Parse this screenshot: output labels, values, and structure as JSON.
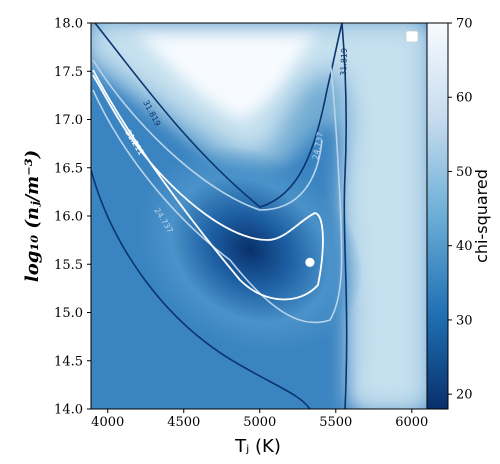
{
  "chart_data": {
    "type": "heatmap",
    "title": "",
    "xlabel": "Tⱼ (K)",
    "ylabel": "log₁₀ (nⱼ/m⁻³)",
    "xlim": [
      3890,
      6100
    ],
    "ylim": [
      14.0,
      18.0
    ],
    "x_ticks": [
      4000,
      4500,
      5000,
      5500,
      6000
    ],
    "x_tick_labels": [
      "4000",
      "4500",
      "5000",
      "5500",
      "6000"
    ],
    "y_ticks": [
      14.0,
      14.5,
      15.0,
      15.5,
      16.0,
      16.5,
      17.0,
      17.5,
      18.0
    ],
    "y_tick_labels": [
      "14.0",
      "14.5",
      "15.0",
      "15.5",
      "16.0",
      "16.5",
      "17.0",
      "17.5",
      "18.0"
    ],
    "colorbar": {
      "label": "chi-squared",
      "range": [
        18,
        70
      ],
      "ticks": [
        20,
        30,
        40,
        50,
        60,
        70
      ],
      "tick_labels": [
        "20",
        "30",
        "40",
        "50",
        "60",
        "70"
      ],
      "colormap": "Blues_r"
    },
    "contour_levels": [
      {
        "value": "21.211",
        "color": "#ffffff"
      },
      {
        "value": "24.737",
        "color": "#b8d3ea"
      },
      {
        "value": "31.819",
        "color": "#0b356e"
      }
    ],
    "best_fit": {
      "x": 5330,
      "y": 15.52,
      "color": "#ffffff"
    },
    "grid": false,
    "legend": {
      "placement": "top-right",
      "entries": []
    }
  }
}
